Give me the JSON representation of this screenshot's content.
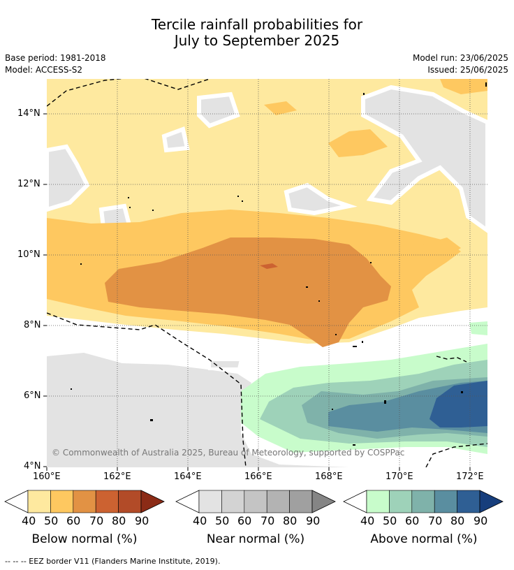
{
  "header": {
    "title_line1": "Tercile rainfall probabilities for",
    "title_line2": "July to September 2025",
    "base_period": "Base period: 1981-2018",
    "model": "Model: ACCESS-S2",
    "model_run": "Model run: 23/06/2025",
    "issued": "Issued: 25/06/2025"
  },
  "map": {
    "lat_ticks": [
      "14°N",
      "12°N",
      "10°N",
      "8°N",
      "6°N",
      "4°N"
    ],
    "lon_ticks": [
      "160°E",
      "162°E",
      "164°E",
      "166°E",
      "168°E",
      "170°E",
      "172°E"
    ],
    "copyright": "© Commonwealth of Australia 2025, Bureau of Meteorology, supported by COSPPac"
  },
  "colorbars": [
    {
      "title": "Below normal (%)",
      "ticks": [
        "40",
        "50",
        "60",
        "70",
        "80",
        "90"
      ],
      "colors": [
        "#ffffff",
        "#fee99f",
        "#fec860",
        "#e29244",
        "#cc6231",
        "#b24b28",
        "#8b2b16"
      ]
    },
    {
      "title": "Near normal (%)",
      "ticks": [
        "40",
        "50",
        "60",
        "70",
        "80",
        "90"
      ],
      "colors": [
        "#ffffff",
        "#e3e3e3",
        "#d3d3d3",
        "#c4c4c4",
        "#b3b3b3",
        "#a0a0a0",
        "#858585"
      ]
    },
    {
      "title": "Above normal (%)",
      "ticks": [
        "40",
        "50",
        "60",
        "70",
        "80",
        "90"
      ],
      "colors": [
        "#ffffff",
        "#c8fccb",
        "#9ed2b9",
        "#7fb2aa",
        "#5a8ea0",
        "#2f5f94",
        "#173e7c"
      ]
    }
  ],
  "footer": {
    "legend_line": "--  --  -- EEZ border V11 (Flanders Marine Institute, 2019)."
  }
}
